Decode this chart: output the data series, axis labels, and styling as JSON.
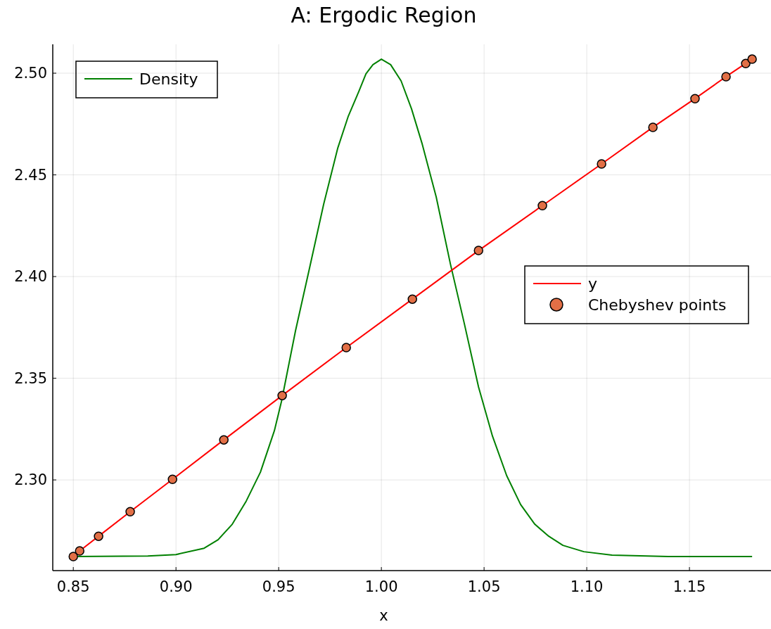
{
  "chart_data": {
    "type": "line",
    "title": "A: Ergodic Region",
    "xlabel": "x",
    "xlim": [
      0.84,
      1.1897
    ],
    "ylim": [
      2.2554,
      2.5142
    ],
    "xticks": [
      {
        "value": 0.85,
        "label": "0.85"
      },
      {
        "value": 0.9,
        "label": "0.90"
      },
      {
        "value": 0.95,
        "label": "0.95"
      },
      {
        "value": 1.0,
        "label": "1.00"
      },
      {
        "value": 1.05,
        "label": "1.05"
      },
      {
        "value": 1.1,
        "label": "1.10"
      },
      {
        "value": 1.15,
        "label": "1.15"
      }
    ],
    "yticks": [
      {
        "value": 2.3,
        "label": "2.30"
      },
      {
        "value": 2.35,
        "label": "2.35"
      },
      {
        "value": 2.4,
        "label": "2.40"
      },
      {
        "value": 2.45,
        "label": "2.45"
      },
      {
        "value": 2.5,
        "label": "2.50"
      }
    ],
    "grid": true,
    "legend": "right",
    "series": [
      {
        "name": "Density",
        "color": "#008000",
        "x": [
          0.85,
          0.8863,
          0.9,
          0.9137,
          0.9205,
          0.9274,
          0.9342,
          0.9411,
          0.9479,
          0.9514,
          0.9582,
          0.9651,
          0.9719,
          0.9788,
          0.9839,
          0.989,
          0.9925,
          0.9959,
          1.0,
          1.0045,
          1.0096,
          1.0147,
          1.0199,
          1.0267,
          1.0336,
          1.0404,
          1.0473,
          1.0541,
          1.061,
          1.0678,
          1.0747,
          1.0815,
          1.0884,
          1.0986,
          1.1123,
          1.1397,
          1.1805
        ],
        "values": [
          2.2623,
          2.2626,
          2.2633,
          2.2664,
          2.2706,
          2.2782,
          2.2896,
          2.3038,
          2.3242,
          2.3388,
          2.3734,
          2.4045,
          2.4356,
          2.4633,
          2.4789,
          2.491,
          2.4997,
          2.5042,
          2.5069,
          2.5042,
          2.4962,
          2.4824,
          2.4651,
          2.4391,
          2.4062,
          2.3768,
          2.3457,
          2.3215,
          2.3021,
          2.2879,
          2.2782,
          2.2723,
          2.2678,
          2.2647,
          2.263,
          2.2623,
          2.2623
        ]
      },
      {
        "name": "y",
        "color": "#ff0000",
        "x": [
          0.85,
          0.8531,
          0.8623,
          0.8777,
          0.8983,
          0.9233,
          0.9517,
          0.9829,
          1.0151,
          1.0473,
          1.0784,
          1.1072,
          1.1322,
          1.1527,
          1.1678,
          1.1774,
          1.1805
        ],
        "values": [
          2.2623,
          2.2651,
          2.2723,
          2.2844,
          2.3003,
          2.3197,
          2.3415,
          2.3651,
          2.3889,
          2.4128,
          2.4349,
          2.4554,
          2.4734,
          2.4875,
          2.4983,
          2.5048,
          2.5069
        ]
      },
      {
        "name": "Chebyshev points",
        "type": "scatter",
        "marker": "circle",
        "color": "#e26f46",
        "x": [
          0.85,
          0.8531,
          0.8623,
          0.8777,
          0.8983,
          0.9233,
          0.9517,
          0.9829,
          1.0151,
          1.0473,
          1.0784,
          1.1072,
          1.1322,
          1.1527,
          1.1678,
          1.1774,
          1.1805
        ],
        "values": [
          2.2623,
          2.2651,
          2.2723,
          2.2844,
          2.3003,
          2.3197,
          2.3415,
          2.3651,
          2.3889,
          2.4128,
          2.4349,
          2.4554,
          2.4734,
          2.4875,
          2.4983,
          2.5048,
          2.5069
        ]
      }
    ]
  }
}
